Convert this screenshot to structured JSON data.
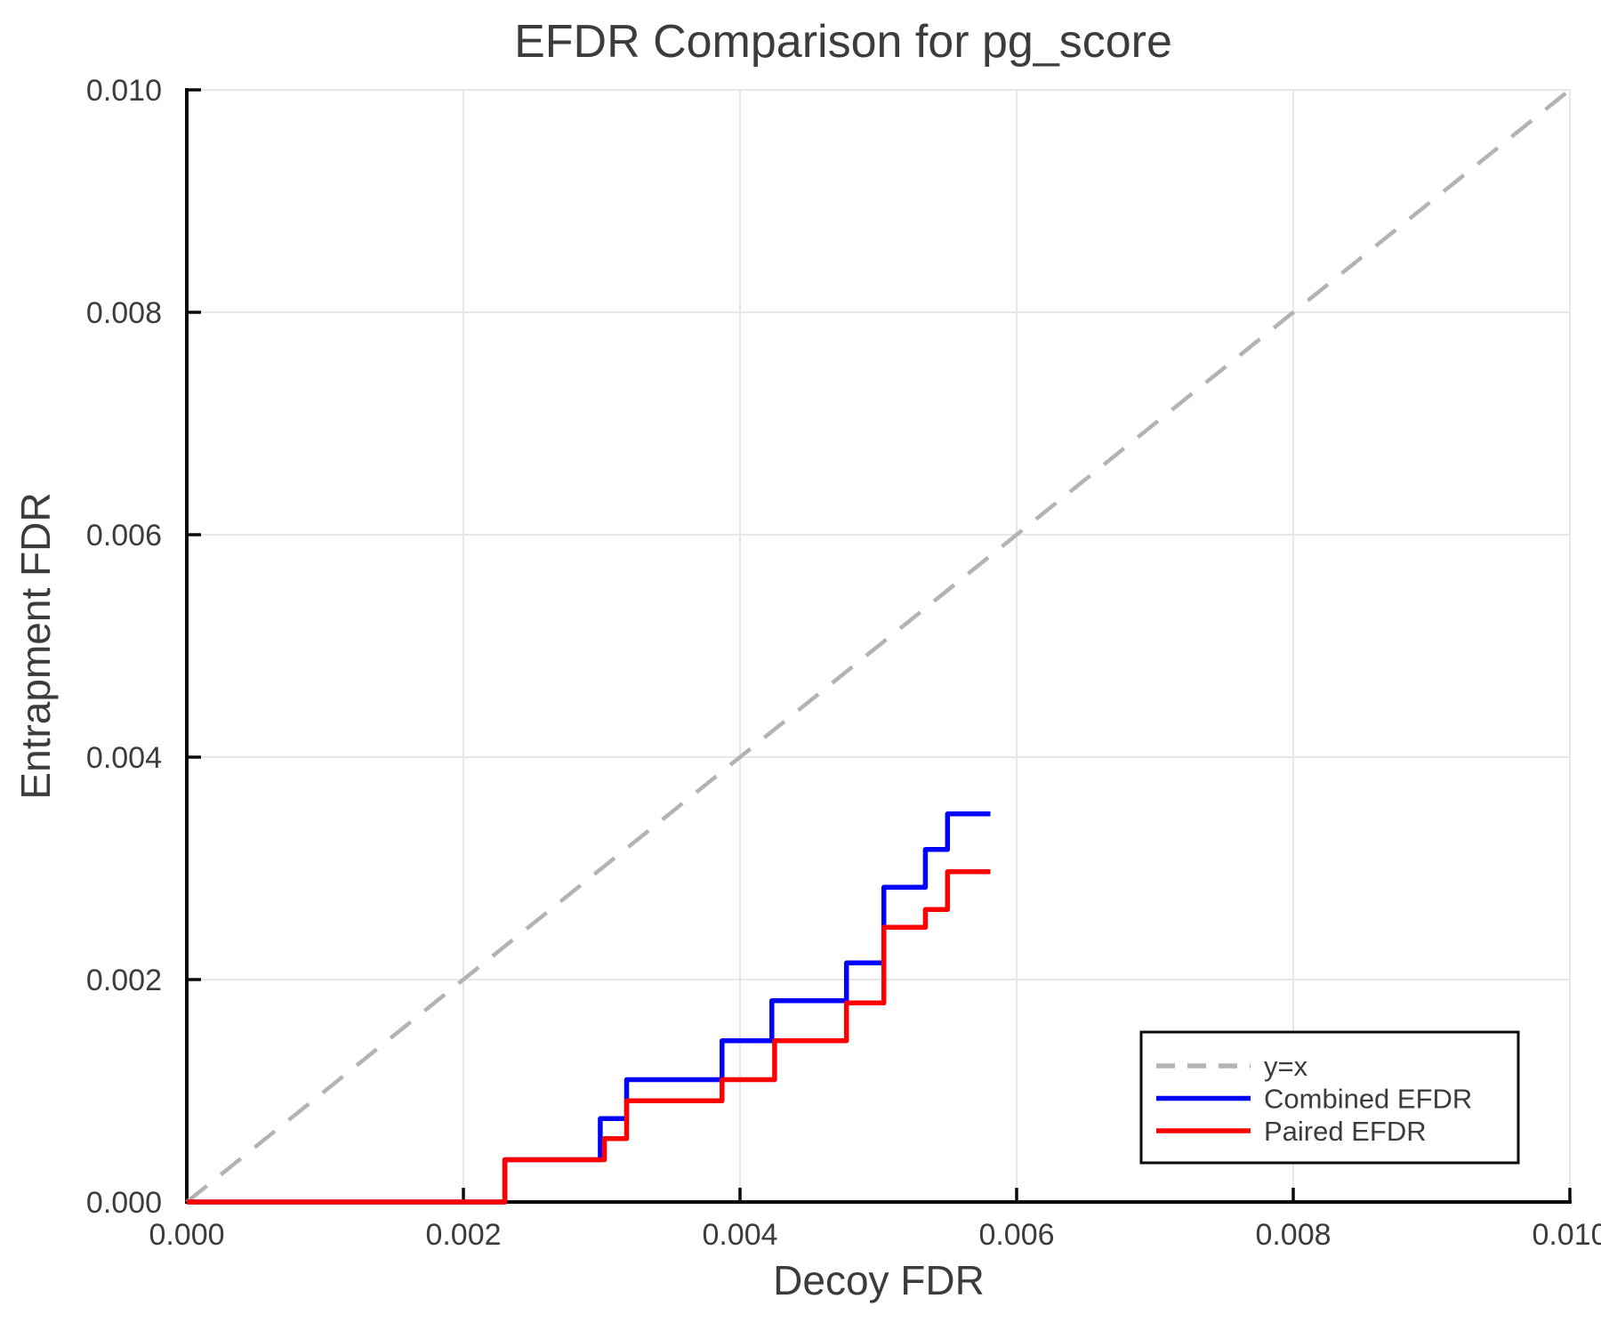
{
  "chart_data": {
    "type": "line",
    "title": "EFDR Comparison for pg_score",
    "xlabel": "Decoy FDR",
    "ylabel": "Entrapment FDR",
    "xlim": [
      0,
      0.01
    ],
    "ylim": [
      0,
      0.01
    ],
    "x_ticks": [
      0,
      0.002,
      0.004,
      0.006,
      0.008,
      0.01
    ],
    "x_tick_labels": [
      "0.000",
      "0.002",
      "0.004",
      "0.006",
      "0.008",
      "0.010"
    ],
    "y_ticks": [
      0,
      0.002,
      0.004,
      0.006,
      0.008,
      0.01
    ],
    "y_tick_labels": [
      "0.000",
      "0.002",
      "0.004",
      "0.006",
      "0.008",
      "0.010"
    ],
    "grid": true,
    "legend_position": "lower right",
    "reference_line": {
      "label": "y=x",
      "style": "dashed",
      "color": "#b3b3b3",
      "from": [
        0,
        0
      ],
      "to": [
        0.01,
        0.01
      ]
    },
    "series": [
      {
        "name": "Combined EFDR",
        "color": "#0000ff",
        "draw_style": "step-post",
        "step_points": [
          [
            0.0,
            0.0
          ],
          [
            0.0023,
            0.00038
          ],
          [
            0.00299,
            0.00075
          ],
          [
            0.00318,
            0.0011
          ],
          [
            0.00387,
            0.00145
          ],
          [
            0.00423,
            0.00181
          ],
          [
            0.00477,
            0.00215
          ],
          [
            0.00504,
            0.00283
          ],
          [
            0.00534,
            0.00317
          ],
          [
            0.0055,
            0.00349
          ]
        ],
        "x_end": 0.00581
      },
      {
        "name": "Paired EFDR",
        "color": "#ff0000",
        "draw_style": "step-post",
        "step_points": [
          [
            0.0,
            0.0
          ],
          [
            0.0023,
            0.00038
          ],
          [
            0.00302,
            0.00057
          ],
          [
            0.00318,
            0.00091
          ],
          [
            0.00387,
            0.0011
          ],
          [
            0.00425,
            0.00145
          ],
          [
            0.00477,
            0.00179
          ],
          [
            0.00504,
            0.00247
          ],
          [
            0.00534,
            0.00263
          ],
          [
            0.0055,
            0.00297
          ]
        ],
        "x_end": 0.00581
      }
    ]
  },
  "legend": {
    "items": [
      {
        "label": "y=x",
        "color": "#b3b3b3",
        "dashed": true
      },
      {
        "label": "Combined EFDR",
        "color": "#0000ff",
        "dashed": false
      },
      {
        "label": "Paired EFDR",
        "color": "#ff0000",
        "dashed": false
      }
    ]
  }
}
